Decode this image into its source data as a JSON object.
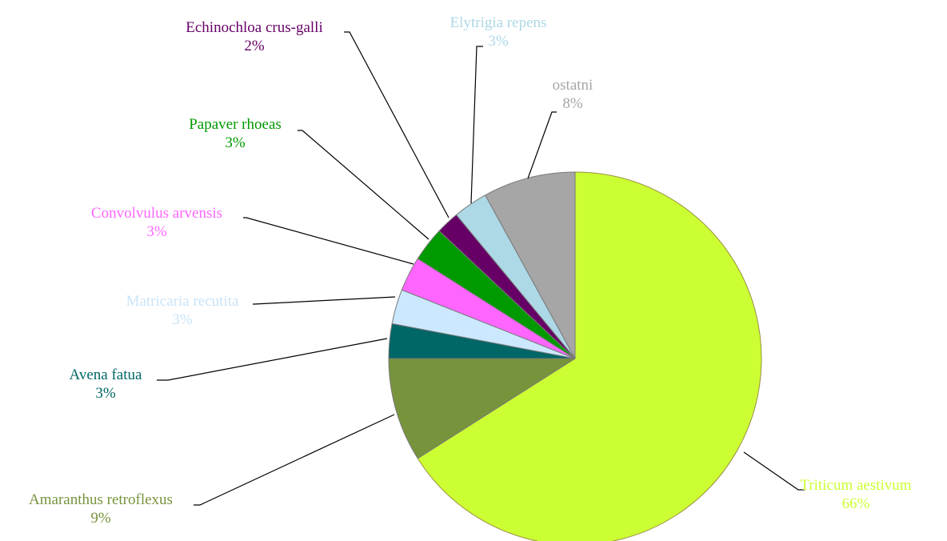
{
  "chart_data": {
    "type": "pie",
    "title": "",
    "start_angle_deg": 0,
    "direction": "clockwise",
    "slices": [
      {
        "label": "Triticum aestivum",
        "value": 66,
        "display": "66%",
        "color": "#ccff33"
      },
      {
        "label": "Amaranthus retroflexus",
        "value": 9,
        "display": "9%",
        "color": "#77933c"
      },
      {
        "label": "Avena fatua",
        "value": 3,
        "display": "3%",
        "color": "#006666"
      },
      {
        "label": "Matricaria recutita",
        "value": 3,
        "display": "3%",
        "color": "#cce8ff"
      },
      {
        "label": "Convolvulus arvensis",
        "value": 3,
        "display": "3%",
        "color": "#ff66ff"
      },
      {
        "label": "Papaver rhoeas",
        "value": 3,
        "display": "3%",
        "color": "#009900"
      },
      {
        "label": "Echinochloa crus-galli",
        "value": 2,
        "display": "2%",
        "color": "#660066"
      },
      {
        "label": "Elytrigia repens",
        "value": 3,
        "display": "3%",
        "color": "#add8e6"
      },
      {
        "label": "ostatni",
        "value": 8,
        "display": "8%",
        "color": "#a6a6a6"
      }
    ]
  }
}
